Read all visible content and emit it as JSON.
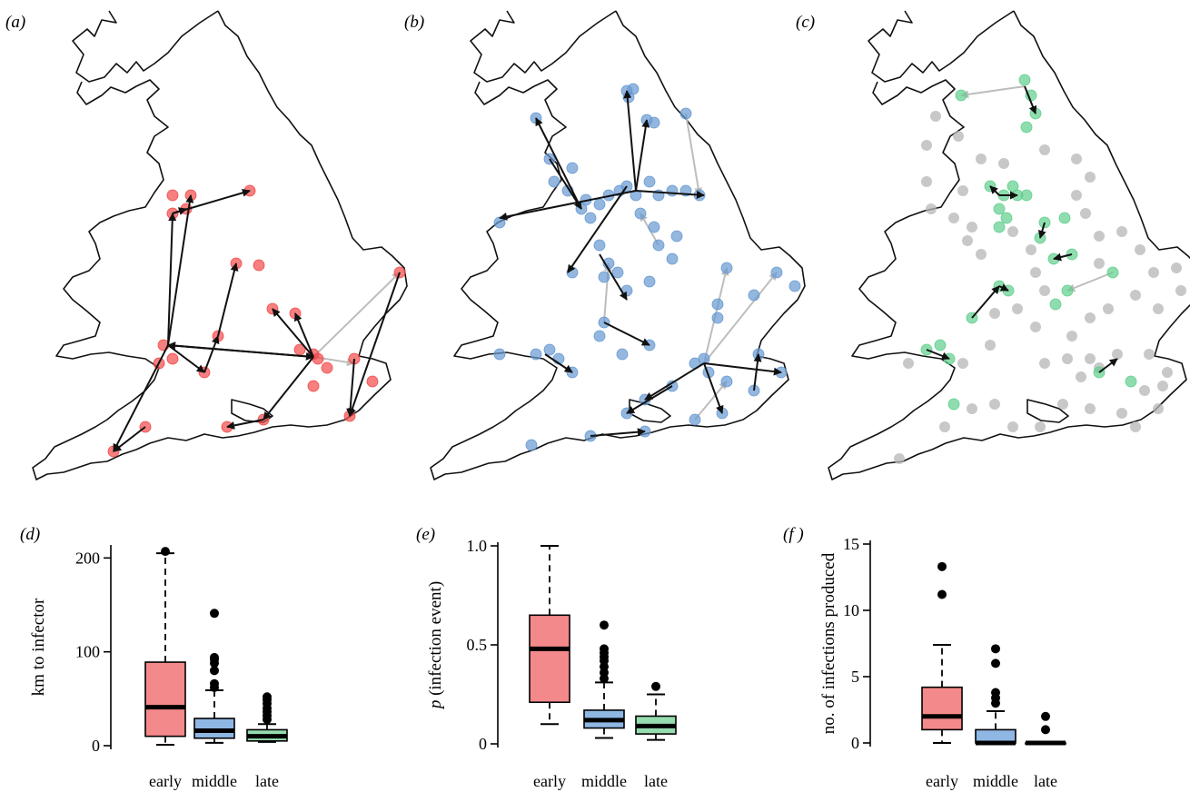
{
  "panels": {
    "a": "(a)",
    "b": "(b)",
    "c": "(c)",
    "d": "(d)",
    "e": "(e)",
    "f": "(f )"
  },
  "colors": {
    "early": "#f4898b",
    "middle": "#8fb7e4",
    "late": "#96dcb0",
    "early_point": "#f24848",
    "middle_point": "#6699d1",
    "late_point": "#5fcf8c",
    "grey_point": "#b5b5b5",
    "arrow_black": "#111111",
    "arrow_grey": "#bdbdbd"
  },
  "maps": [
    {
      "panel": "a",
      "phase": "early",
      "points": [
        [
          190,
          215
        ],
        [
          210,
          215
        ],
        [
          190,
          235
        ],
        [
          205,
          230
        ],
        [
          275,
          210
        ],
        [
          260,
          290
        ],
        [
          285,
          292
        ],
        [
          240,
          370
        ],
        [
          225,
          410
        ],
        [
          180,
          380
        ],
        [
          190,
          395
        ],
        [
          175,
          400
        ],
        [
          300,
          340
        ],
        [
          325,
          345
        ],
        [
          345,
          390
        ],
        [
          350,
          395
        ],
        [
          330,
          385
        ],
        [
          360,
          405
        ],
        [
          410,
          420
        ],
        [
          390,
          395
        ],
        [
          440,
          300
        ],
        [
          385,
          458
        ],
        [
          345,
          425
        ],
        [
          290,
          462
        ],
        [
          250,
          470
        ],
        [
          160,
          470
        ],
        [
          125,
          497
        ]
      ],
      "arrows": [
        [
          190,
          235,
          275,
          210,
          "k"
        ],
        [
          190,
          235,
          205,
          230,
          "k"
        ],
        [
          185,
          380,
          190,
          235,
          "k"
        ],
        [
          185,
          380,
          210,
          215,
          "k"
        ],
        [
          185,
          380,
          345,
          393,
          "k"
        ],
        [
          345,
          393,
          185,
          380,
          "k"
        ],
        [
          240,
          370,
          260,
          290,
          "k"
        ],
        [
          225,
          410,
          240,
          370,
          "k"
        ],
        [
          345,
          393,
          300,
          340,
          "k"
        ],
        [
          345,
          393,
          325,
          345,
          "k"
        ],
        [
          345,
          393,
          290,
          462,
          "k"
        ],
        [
          345,
          393,
          440,
          300,
          "g"
        ],
        [
          440,
          300,
          385,
          458,
          "k"
        ],
        [
          345,
          393,
          390,
          400,
          "g"
        ],
        [
          390,
          395,
          385,
          458,
          "k"
        ],
        [
          290,
          462,
          250,
          470,
          "k"
        ],
        [
          160,
          470,
          125,
          497,
          "k"
        ],
        [
          185,
          380,
          125,
          497,
          "k"
        ],
        [
          185,
          380,
          225,
          410,
          "k"
        ]
      ]
    },
    {
      "panel": "b",
      "phase": "middle",
      "points": [
        [
          690,
          100
        ],
        [
          697,
          98
        ],
        [
          692,
          107
        ],
        [
          712,
          132
        ],
        [
          720,
          135
        ],
        [
          755,
          125
        ],
        [
          590,
          130
        ],
        [
          605,
          175
        ],
        [
          630,
          185
        ],
        [
          645,
          220
        ],
        [
          660,
          225
        ],
        [
          670,
          215
        ],
        [
          682,
          210
        ],
        [
          690,
          205
        ],
        [
          700,
          215
        ],
        [
          715,
          200
        ],
        [
          725,
          215
        ],
        [
          740,
          210
        ],
        [
          755,
          210
        ],
        [
          770,
          215
        ],
        [
          610,
          200
        ],
        [
          625,
          210
        ],
        [
          640,
          230
        ],
        [
          650,
          240
        ],
        [
          550,
          245
        ],
        [
          705,
          235
        ],
        [
          720,
          250
        ],
        [
          745,
          260
        ],
        [
          630,
          300
        ],
        [
          660,
          270
        ],
        [
          670,
          290
        ],
        [
          665,
          305
        ],
        [
          680,
          300
        ],
        [
          690,
          320
        ],
        [
          715,
          310
        ],
        [
          725,
          270
        ],
        [
          740,
          285
        ],
        [
          800,
          295
        ],
        [
          855,
          300
        ],
        [
          875,
          315
        ],
        [
          830,
          325
        ],
        [
          790,
          335
        ],
        [
          790,
          350
        ],
        [
          665,
          355
        ],
        [
          685,
          390
        ],
        [
          715,
          380
        ],
        [
          660,
          370
        ],
        [
          765,
          400
        ],
        [
          775,
          395
        ],
        [
          780,
          410
        ],
        [
          800,
          420
        ],
        [
          835,
          390
        ],
        [
          860,
          410
        ],
        [
          830,
          430
        ],
        [
          795,
          455
        ],
        [
          765,
          462
        ],
        [
          740,
          425
        ],
        [
          710,
          440
        ],
        [
          690,
          455
        ],
        [
          650,
          480
        ],
        [
          710,
          475
        ],
        [
          590,
          390
        ],
        [
          605,
          385
        ],
        [
          615,
          395
        ],
        [
          585,
          490
        ],
        [
          550,
          390
        ],
        [
          630,
          410
        ]
      ],
      "arrows": [
        [
          700,
          210,
          690,
          100,
          "k"
        ],
        [
          700,
          210,
          712,
          132,
          "k"
        ],
        [
          700,
          210,
          550,
          240,
          "k"
        ],
        [
          700,
          210,
          775,
          215,
          "k"
        ],
        [
          640,
          230,
          590,
          130,
          "k"
        ],
        [
          690,
          205,
          625,
          300,
          "k"
        ],
        [
          660,
          280,
          690,
          330,
          "k"
        ],
        [
          665,
          355,
          715,
          380,
          "k"
        ],
        [
          665,
          355,
          670,
          290,
          "g"
        ],
        [
          725,
          270,
          705,
          235,
          "g"
        ],
        [
          775,
          400,
          800,
          295,
          "g"
        ],
        [
          775,
          400,
          855,
          300,
          "g"
        ],
        [
          775,
          400,
          710,
          440,
          "k"
        ],
        [
          775,
          400,
          860,
          410,
          "k"
        ],
        [
          775,
          400,
          795,
          455,
          "k"
        ],
        [
          740,
          425,
          690,
          455,
          "k"
        ],
        [
          650,
          480,
          710,
          475,
          "k"
        ],
        [
          600,
          390,
          630,
          410,
          "k"
        ],
        [
          765,
          462,
          800,
          420,
          "g"
        ],
        [
          830,
          430,
          835,
          390,
          "k"
        ],
        [
          755,
          125,
          770,
          215,
          "g"
        ],
        [
          605,
          175,
          640,
          230,
          "k"
        ]
      ]
    },
    {
      "panel": "c",
      "phase": "late",
      "green_points": [
        [
          1128,
          88
        ],
        [
          1135,
          105
        ],
        [
          1140,
          125
        ],
        [
          1130,
          140
        ],
        [
          1058,
          105
        ],
        [
          1090,
          205
        ],
        [
          1105,
          215
        ],
        [
          1115,
          205
        ],
        [
          1100,
          230
        ],
        [
          1108,
          240
        ],
        [
          1100,
          250
        ],
        [
          1120,
          215
        ],
        [
          1130,
          215
        ],
        [
          1150,
          245
        ],
        [
          1145,
          262
        ],
        [
          1172,
          240
        ],
        [
          1180,
          280
        ],
        [
          1160,
          285
        ],
        [
          1100,
          315
        ],
        [
          1110,
          320
        ],
        [
          1070,
          350
        ],
        [
          1225,
          300
        ],
        [
          1175,
          320
        ],
        [
          1162,
          335
        ],
        [
          1020,
          385
        ],
        [
          1035,
          380
        ],
        [
          1045,
          395
        ],
        [
          1050,
          445
        ],
        [
          1210,
          410
        ],
        [
          1245,
          420
        ]
      ],
      "grey_points": [
        [
          1030,
          128
        ],
        [
          1020,
          160
        ],
        [
          1055,
          150
        ],
        [
          1080,
          175
        ],
        [
          1020,
          200
        ],
        [
          1025,
          230
        ],
        [
          1050,
          240
        ],
        [
          1070,
          250
        ],
        [
          1065,
          265
        ],
        [
          1080,
          280
        ],
        [
          1115,
          255
        ],
        [
          1135,
          275
        ],
        [
          1140,
          300
        ],
        [
          1150,
          320
        ],
        [
          1185,
          215
        ],
        [
          1195,
          235
        ],
        [
          1210,
          260
        ],
        [
          1235,
          255
        ],
        [
          1210,
          290
        ],
        [
          1255,
          275
        ],
        [
          1270,
          300
        ],
        [
          1295,
          295
        ],
        [
          1300,
          320
        ],
        [
          1275,
          340
        ],
        [
          1250,
          325
        ],
        [
          1220,
          340
        ],
        [
          1200,
          350
        ],
        [
          1180,
          370
        ],
        [
          1140,
          360
        ],
        [
          1120,
          340
        ],
        [
          1095,
          345
        ],
        [
          1090,
          380
        ],
        [
          1060,
          400
        ],
        [
          1000,
          400
        ],
        [
          1150,
          400
        ],
        [
          1175,
          395
        ],
        [
          1200,
          395
        ],
        [
          1190,
          415
        ],
        [
          1210,
          405
        ],
        [
          1230,
          390
        ],
        [
          1265,
          390
        ],
        [
          1285,
          410
        ],
        [
          1260,
          430
        ],
        [
          1235,
          455
        ],
        [
          1200,
          450
        ],
        [
          1170,
          445
        ],
        [
          1145,
          470
        ],
        [
          1115,
          470
        ],
        [
          1095,
          445
        ],
        [
          1070,
          450
        ],
        [
          1040,
          470
        ],
        [
          990,
          505
        ],
        [
          1275,
          450
        ],
        [
          1250,
          470
        ],
        [
          1280,
          425
        ],
        [
          1060,
          210
        ],
        [
          1105,
          180
        ],
        [
          1185,
          175
        ],
        [
          1200,
          195
        ],
        [
          1150,
          165
        ]
      ],
      "arrows": [
        [
          1128,
          95,
          1058,
          105,
          "g"
        ],
        [
          1128,
          95,
          1140,
          125,
          "k"
        ],
        [
          1100,
          215,
          1090,
          205,
          "k"
        ],
        [
          1100,
          215,
          1120,
          215,
          "k"
        ],
        [
          1150,
          245,
          1145,
          262,
          "k"
        ],
        [
          1180,
          280,
          1160,
          285,
          "k"
        ],
        [
          1100,
          315,
          1110,
          320,
          "k"
        ],
        [
          1225,
          300,
          1175,
          320,
          "g"
        ],
        [
          1070,
          350,
          1100,
          315,
          "k"
        ],
        [
          1020,
          385,
          1045,
          395,
          "k"
        ],
        [
          1210,
          410,
          1230,
          395,
          "k"
        ]
      ]
    }
  ],
  "chart_data": [
    {
      "panel": "d",
      "type": "box",
      "categories": [
        "early",
        "middle",
        "late"
      ],
      "ylabel": "km to infector",
      "ylim": [
        0,
        210
      ],
      "yticks": [
        0,
        100,
        200
      ],
      "boxes": [
        {
          "q1": 10,
          "median": 41,
          "q3": 89,
          "whisker_low": 1,
          "whisker_high": 205,
          "outliers": [
            207
          ]
        },
        {
          "q1": 8,
          "median": 16,
          "q3": 29,
          "whisker_low": 3,
          "whisker_high": 59,
          "outliers": [
            62,
            66,
            80,
            88,
            92,
            94,
            141
          ]
        },
        {
          "q1": 5,
          "median": 10,
          "q3": 17,
          "whisker_low": 4,
          "whisker_high": 23,
          "outliers": [
            28,
            32,
            36,
            40,
            45,
            49,
            52
          ]
        }
      ]
    },
    {
      "panel": "e",
      "type": "box",
      "categories": [
        "early",
        "middle",
        "late"
      ],
      "ylabel": "p (infection event)",
      "ylim": [
        0,
        1.0
      ],
      "yticks": [
        0,
        0.5,
        1.0
      ],
      "ytick_labels": [
        "0",
        "0.5",
        "1.0"
      ],
      "boxes": [
        {
          "q1": 0.21,
          "median": 0.48,
          "q3": 0.65,
          "whisker_low": 0.1,
          "whisker_high": 1.0,
          "outliers": []
        },
        {
          "q1": 0.08,
          "median": 0.12,
          "q3": 0.17,
          "whisker_low": 0.03,
          "whisker_high": 0.31,
          "outliers": [
            0.33,
            0.36,
            0.39,
            0.42,
            0.44,
            0.46,
            0.48,
            0.6
          ]
        },
        {
          "q1": 0.05,
          "median": 0.09,
          "q3": 0.14,
          "whisker_low": 0.02,
          "whisker_high": 0.25,
          "outliers": [
            0.29
          ]
        }
      ]
    },
    {
      "panel": "f",
      "type": "box",
      "categories": [
        "early",
        "middle",
        "late"
      ],
      "ylabel": "no. of infections produced",
      "ylim": [
        0,
        15
      ],
      "yticks": [
        0,
        5,
        10,
        15
      ],
      "boxes": [
        {
          "q1": 1,
          "median": 2,
          "q3": 4.2,
          "whisker_low": 0,
          "whisker_high": 7.4,
          "outliers": [
            11.2,
            13.3
          ]
        },
        {
          "q1": 0,
          "median": 0,
          "q3": 1,
          "whisker_low": 0,
          "whisker_high": 2.4,
          "outliers": [
            3.0,
            3.4,
            3.8,
            6.0,
            7.1
          ]
        },
        {
          "q1": 0,
          "median": 0,
          "q3": 0,
          "whisker_low": 0,
          "whisker_high": 0,
          "outliers": [
            1.0,
            2.0
          ]
        }
      ]
    }
  ]
}
